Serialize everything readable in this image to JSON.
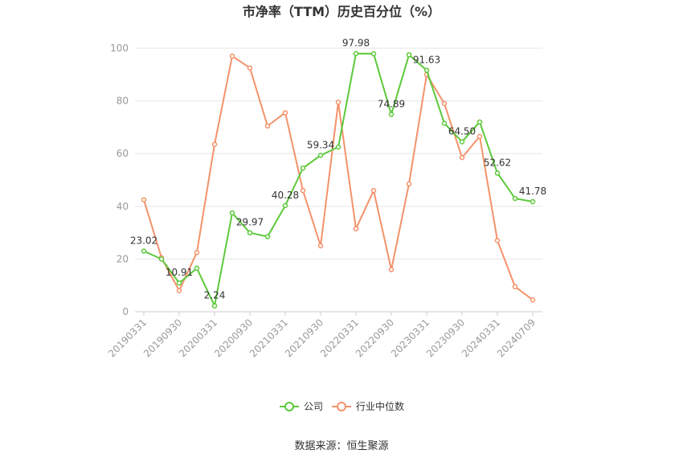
{
  "chart_data": {
    "type": "line",
    "title": "市净率（TTM）历史百分位（%）",
    "source": "数据来源：恒生聚源",
    "x_tick_labels": [
      "20190331",
      "20190930",
      "20200331",
      "20200930",
      "20210331",
      "20210930",
      "20220331",
      "20220930",
      "20230331",
      "20230930",
      "20240331",
      "20240709"
    ],
    "x": [
      "20190331",
      "20190630",
      "20190930",
      "20191231",
      "20200331",
      "20200630",
      "20200930",
      "20201231",
      "20210331",
      "20210630",
      "20210930",
      "20211231",
      "20220331",
      "20220630",
      "20220930",
      "20221231",
      "20230331",
      "20230630",
      "20230930",
      "20231231",
      "20240331",
      "20240630",
      "20240709"
    ],
    "ylim": [
      0,
      100
    ],
    "yticks": [
      "0",
      "20",
      "40",
      "60",
      "80",
      "100"
    ],
    "grid": true,
    "legend_position": "bottom",
    "series": [
      {
        "name": "公司",
        "color": "#5cc93a",
        "values": [
          23.02,
          20.0,
          10.91,
          16.5,
          2.24,
          37.5,
          29.97,
          28.5,
          40.28,
          54.5,
          59.34,
          62.5,
          97.98,
          97.9,
          74.89,
          97.5,
          91.63,
          71.5,
          64.5,
          72.0,
          52.62,
          43.0,
          41.78
        ],
        "labels": [
          "23.02",
          "",
          "10.91",
          "",
          "2.24",
          "",
          "29.97",
          "",
          "40.28",
          "",
          "59.34",
          "",
          "97.98",
          "",
          "74.89",
          "",
          "91.63",
          "",
          "64.50",
          "",
          "52.62",
          "",
          "41.78"
        ]
      },
      {
        "name": "行业中位数",
        "color": "#f4926a",
        "values": [
          42.5,
          20.5,
          8.0,
          22.5,
          63.5,
          97.0,
          92.5,
          70.5,
          75.5,
          46.0,
          25.0,
          79.5,
          31.5,
          46.0,
          16.0,
          48.5,
          90.0,
          79.0,
          58.5,
          66.5,
          27.0,
          9.5,
          4.5
        ],
        "labels": []
      }
    ]
  }
}
